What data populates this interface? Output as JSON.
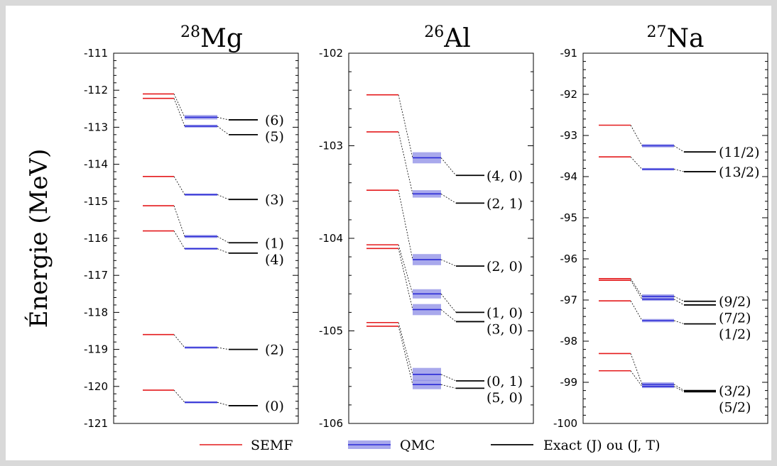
{
  "ylabel": "Énergie (MeV)",
  "colors": {
    "semf": "#e41a1c",
    "qmc": "#2b2bd6",
    "qmc_band": "#8c8ce6",
    "exact": "#000000"
  },
  "legend": {
    "semf": "SEMF",
    "qmc": "QMC",
    "exact": "Exact (J) ou (J, T)"
  },
  "chart_data": [
    {
      "type": "level-scheme",
      "nucleus": {
        "mass": "28",
        "symbol": "Mg"
      },
      "ylim": [
        -121,
        -111
      ],
      "ticks": [
        -111,
        -112,
        -113,
        -114,
        -115,
        -116,
        -117,
        -118,
        -119,
        -120,
        -121
      ],
      "levels": [
        {
          "semf": -112.1,
          "qmc": -112.73,
          "qmc_err": 0.06,
          "exact": -112.8,
          "label": "(6)"
        },
        {
          "semf": -112.22,
          "qmc": -112.97,
          "qmc_err": 0.04,
          "exact": -113.2,
          "label": "(5)"
        },
        {
          "semf": -114.33,
          "qmc": -114.82,
          "qmc_err": 0.03,
          "exact": -114.95,
          "label": "(3)"
        },
        {
          "semf": -115.12,
          "qmc": -115.95,
          "qmc_err": 0.04,
          "exact": -116.12,
          "label": "(1)"
        },
        {
          "semf": -115.8,
          "qmc": -116.28,
          "qmc_err": 0.03,
          "exact": -116.4,
          "label": "(4)"
        },
        {
          "semf": -118.6,
          "qmc": -118.95,
          "qmc_err": 0.03,
          "exact": -119.0,
          "label": "(2)"
        },
        {
          "semf": -120.1,
          "qmc": -120.43,
          "qmc_err": 0.03,
          "exact": -120.52,
          "label": "(0)"
        }
      ]
    },
    {
      "type": "level-scheme",
      "nucleus": {
        "mass": "26",
        "symbol": "Al"
      },
      "ylim": [
        -106,
        -102
      ],
      "ticks": [
        -102,
        -103,
        -104,
        -105,
        -106
      ],
      "levels": [
        {
          "semf": -102.45,
          "qmc": -103.13,
          "qmc_err": 0.06,
          "exact": -103.32,
          "label": "(4, 0)"
        },
        {
          "semf": -102.85,
          "qmc": -103.52,
          "qmc_err": 0.04,
          "exact": -103.62,
          "label": "(2, 1)"
        },
        {
          "semf": -103.48,
          "qmc": -104.23,
          "qmc_err": 0.06,
          "exact": -104.3,
          "label": "(2, 0)"
        },
        {
          "semf": -104.07,
          "qmc": -104.6,
          "qmc_err": 0.05,
          "exact": -104.8,
          "label": "(1, 0)"
        },
        {
          "semf": -104.11,
          "qmc": -104.77,
          "qmc_err": 0.06,
          "exact": -104.9,
          "label": "(3, 0)"
        },
        {
          "semf": -104.91,
          "qmc": -105.47,
          "qmc_err": 0.07,
          "exact": -105.54,
          "label": "(0, 1)"
        },
        {
          "semf": -104.95,
          "qmc": -105.58,
          "qmc_err": 0.05,
          "exact": -105.62,
          "label": "(5, 0)"
        }
      ]
    },
    {
      "type": "level-scheme",
      "nucleus": {
        "mass": "27",
        "symbol": "Na"
      },
      "ylim": [
        -100,
        -91
      ],
      "ticks": [
        -91,
        -92,
        -93,
        -94,
        -95,
        -96,
        -97,
        -98,
        -99,
        -100
      ],
      "levels": [
        {
          "semf": -92.75,
          "qmc": -93.25,
          "qmc_err": 0.04,
          "exact": -93.4,
          "label": "(11/2)"
        },
        {
          "semf": -93.52,
          "qmc": -93.82,
          "qmc_err": 0.03,
          "exact": -93.88,
          "label": "(13/2)"
        },
        {
          "semf": -96.48,
          "qmc": -96.91,
          "qmc_err": 0.05,
          "exact": -97.03,
          "label": "(9/2)"
        },
        {
          "semf": -96.52,
          "qmc": -96.98,
          "qmc_err": 0.04,
          "exact": -97.12,
          "label": "(7/2)"
        },
        {
          "semf": -97.02,
          "qmc": -97.5,
          "qmc_err": 0.04,
          "exact": -97.58,
          "label": "(1/2)"
        },
        {
          "semf": -98.3,
          "qmc": -99.05,
          "qmc_err": 0.05,
          "exact": -99.2,
          "label": "(3/2)"
        },
        {
          "semf": -98.72,
          "qmc": -99.1,
          "qmc_err": 0.04,
          "exact": -99.23,
          "label": "(5/2)"
        }
      ]
    }
  ]
}
